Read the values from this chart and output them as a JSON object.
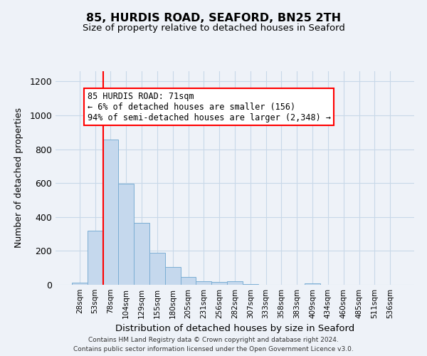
{
  "title": "85, HURDIS ROAD, SEAFORD, BN25 2TH",
  "subtitle": "Size of property relative to detached houses in Seaford",
  "xlabel": "Distribution of detached houses by size in Seaford",
  "ylabel": "Number of detached properties",
  "bar_labels": [
    "28sqm",
    "53sqm",
    "78sqm",
    "104sqm",
    "129sqm",
    "155sqm",
    "180sqm",
    "205sqm",
    "231sqm",
    "256sqm",
    "282sqm",
    "307sqm",
    "333sqm",
    "358sqm",
    "383sqm",
    "409sqm",
    "434sqm",
    "460sqm",
    "485sqm",
    "511sqm",
    "536sqm"
  ],
  "bar_values": [
    12,
    320,
    855,
    595,
    365,
    188,
    103,
    47,
    22,
    15,
    20,
    5,
    0,
    0,
    0,
    10,
    0,
    0,
    0,
    0,
    0
  ],
  "bar_color": "#c5d8ed",
  "bar_edge_color": "#7baed4",
  "property_line_x": 1.5,
  "property_line_color": "red",
  "ylim": [
    0,
    1260
  ],
  "annotation_line1": "85 HURDIS ROAD: 71sqm",
  "annotation_line2": "← 6% of detached houses are smaller (156)",
  "annotation_line3": "94% of semi-detached houses are larger (2,348) →",
  "annotation_box_color": "red",
  "footnote1": "Contains HM Land Registry data © Crown copyright and database right 2024.",
  "footnote2": "Contains public sector information licensed under the Open Government Licence v3.0.",
  "background_color": "#eef2f8",
  "grid_color": "#c8d8e8"
}
